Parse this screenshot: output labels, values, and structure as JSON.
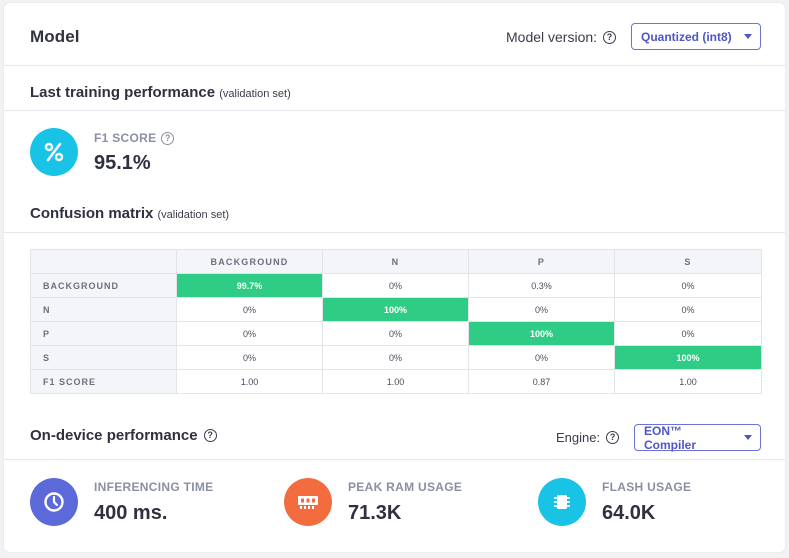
{
  "header": {
    "title": "Model"
  },
  "model_version": {
    "label": "Model version:",
    "selected": "Quantized (int8)"
  },
  "training": {
    "title": "Last training performance",
    "subtitle": "(validation set)",
    "f1": {
      "label": "F1 SCORE",
      "value": "95.1%"
    }
  },
  "confusion": {
    "title": "Confusion matrix",
    "subtitle": "(validation set)",
    "columns": [
      "BACKGROUND",
      "N",
      "P",
      "S"
    ],
    "rows": [
      {
        "label": "BACKGROUND",
        "cells": [
          "99.7%",
          "0%",
          "0.3%",
          "0%"
        ]
      },
      {
        "label": "N",
        "cells": [
          "0%",
          "100%",
          "0%",
          "0%"
        ]
      },
      {
        "label": "P",
        "cells": [
          "0%",
          "0%",
          "100%",
          "0%"
        ]
      },
      {
        "label": "S",
        "cells": [
          "0%",
          "0%",
          "0%",
          "100%"
        ]
      },
      {
        "label": "F1 SCORE",
        "cells": [
          "1.00",
          "1.00",
          "0.87",
          "1.00"
        ]
      }
    ],
    "highlight_color": "#2ecc85"
  },
  "on_device": {
    "title": "On-device performance",
    "engine_label": "Engine:",
    "engine_selected": "EON™ Compiler",
    "metrics": [
      {
        "label": "INFERENCING TIME",
        "value": "400 ms.",
        "icon": "clock-icon",
        "color": "#5b6ad8"
      },
      {
        "label": "PEAK RAM USAGE",
        "value": "71.3K",
        "icon": "ram-icon",
        "color": "#f26c3f"
      },
      {
        "label": "FLASH USAGE",
        "value": "64.0K",
        "icon": "chip-icon",
        "color": "#18c3e6"
      }
    ]
  }
}
